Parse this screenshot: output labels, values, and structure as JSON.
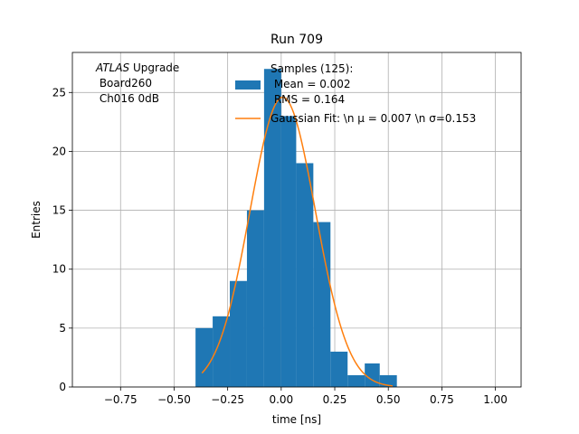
{
  "chart_data": {
    "type": "bar",
    "title": "Run 709",
    "xlabel": "time [ns]",
    "ylabel": "Entries",
    "xlim": [
      -0.975,
      1.12
    ],
    "ylim": [
      0,
      28.4
    ],
    "grid": true,
    "x_ticks": [
      {
        "value": -0.75,
        "label": "−0.75"
      },
      {
        "value": -0.5,
        "label": "−0.50"
      },
      {
        "value": -0.25,
        "label": "−0.25"
      },
      {
        "value": 0.0,
        "label": "0.00"
      },
      {
        "value": 0.25,
        "label": "0.25"
      },
      {
        "value": 0.5,
        "label": "0.50"
      },
      {
        "value": 0.75,
        "label": "0.75"
      },
      {
        "value": 1.0,
        "label": "1.00"
      }
    ],
    "y_ticks": [
      {
        "value": 0,
        "label": "0"
      },
      {
        "value": 5,
        "label": "5"
      },
      {
        "value": 10,
        "label": "10"
      },
      {
        "value": 15,
        "label": "15"
      },
      {
        "value": 20,
        "label": "20"
      },
      {
        "value": 25,
        "label": "25"
      }
    ],
    "histogram": {
      "color": "#1f77b4",
      "bins": [
        {
          "x0": -0.4,
          "x1": -0.32,
          "count": 5
        },
        {
          "x0": -0.32,
          "x1": -0.24,
          "count": 6
        },
        {
          "x0": -0.24,
          "x1": -0.16,
          "count": 9
        },
        {
          "x0": -0.16,
          "x1": -0.08,
          "count": 15
        },
        {
          "x0": -0.08,
          "x1": 0.0,
          "count": 27
        },
        {
          "x0": 0.0,
          "x1": 0.07,
          "count": 23
        },
        {
          "x0": 0.07,
          "x1": 0.15,
          "count": 19
        },
        {
          "x0": 0.15,
          "x1": 0.23,
          "count": 14
        },
        {
          "x0": 0.23,
          "x1": 0.31,
          "count": 3
        },
        {
          "x0": 0.31,
          "x1": 0.39,
          "count": 1
        },
        {
          "x0": 0.39,
          "x1": 0.46,
          "count": 2
        },
        {
          "x0": 0.46,
          "x1": 0.54,
          "count": 1
        }
      ]
    },
    "fit": {
      "color": "#ff7f0e",
      "amplitude": 24.6,
      "mu": 0.007,
      "sigma": 0.153,
      "x_start": -0.37,
      "x_end": 0.52
    },
    "legend": {
      "placement": "top-right",
      "entries": [
        {
          "kind": "patch",
          "color": "#1f77b4",
          "lines": [
            "Samples (125):",
            " Mean = 0.002",
            " RMS = 0.164"
          ]
        },
        {
          "kind": "line",
          "color": "#ff7f0e",
          "lines": [
            "Gaussian Fit: \\n μ = 0.007 \\n σ=0.153"
          ]
        }
      ]
    },
    "annotation": {
      "italic": "ATLAS",
      "rest": " Upgrade",
      "line2": " Board260",
      "line3": " Ch016 0dB"
    }
  }
}
